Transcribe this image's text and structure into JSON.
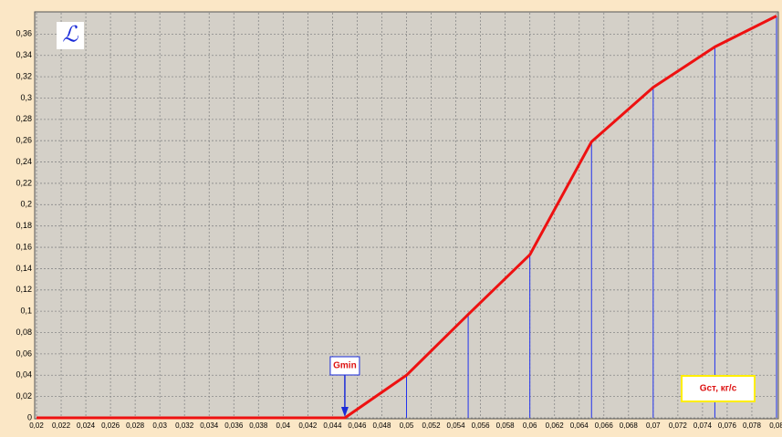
{
  "chart_data": {
    "type": "line",
    "y_label": "ℒ",
    "x_label": "Gст, кг/с",
    "x": [
      0.02,
      0.045,
      0.05,
      0.055,
      0.06,
      0.065,
      0.07,
      0.075,
      0.08
    ],
    "series": [
      {
        "color": "#ee1111",
        "values": [
          0,
          0,
          0.04,
          0.097,
          0.153,
          0.259,
          0.31,
          0.348,
          0.377
        ]
      }
    ],
    "drop_lines": true,
    "drop_line_color": "#2233ee",
    "annotations": [
      {
        "text": "Gmin",
        "x": 0.045
      }
    ],
    "xlim": [
      0.02,
      0.08
    ],
    "ylim": [
      0,
      0.38
    ],
    "grid": true,
    "xticks": [
      {
        "value": 0.02,
        "label": "0,02"
      },
      {
        "value": 0.022,
        "label": "0,022"
      },
      {
        "value": 0.024,
        "label": "0,024"
      },
      {
        "value": 0.026,
        "label": "0,026"
      },
      {
        "value": 0.028,
        "label": "0,028"
      },
      {
        "value": 0.03,
        "label": "0,03"
      },
      {
        "value": 0.032,
        "label": "0,032"
      },
      {
        "value": 0.034,
        "label": "0,034"
      },
      {
        "value": 0.036,
        "label": "0,036"
      },
      {
        "value": 0.038,
        "label": "0,038"
      },
      {
        "value": 0.04,
        "label": "0,04"
      },
      {
        "value": 0.042,
        "label": "0,042"
      },
      {
        "value": 0.044,
        "label": "0,044"
      },
      {
        "value": 0.046,
        "label": "0,046"
      },
      {
        "value": 0.048,
        "label": "0,048"
      },
      {
        "value": 0.05,
        "label": "0,05"
      },
      {
        "value": 0.052,
        "label": "0,052"
      },
      {
        "value": 0.054,
        "label": "0,054"
      },
      {
        "value": 0.056,
        "label": "0,056"
      },
      {
        "value": 0.058,
        "label": "0,058"
      },
      {
        "value": 0.06,
        "label": "0,06"
      },
      {
        "value": 0.062,
        "label": "0,062"
      },
      {
        "value": 0.064,
        "label": "0,064"
      },
      {
        "value": 0.066,
        "label": "0,066"
      },
      {
        "value": 0.068,
        "label": "0,068"
      },
      {
        "value": 0.07,
        "label": "0,07"
      },
      {
        "value": 0.072,
        "label": "0,072"
      },
      {
        "value": 0.074,
        "label": "0,074"
      },
      {
        "value": 0.076,
        "label": "0,076"
      },
      {
        "value": 0.078,
        "label": "0,078"
      },
      {
        "value": 0.08,
        "label": "0,08"
      }
    ],
    "yticks": [
      0,
      {
        "value": 0.02,
        "label": "0,02"
      },
      {
        "value": 0.04,
        "label": "0,04"
      },
      {
        "value": 0.06,
        "label": "0,06"
      },
      {
        "value": 0.08,
        "label": "0,08"
      },
      {
        "value": 0.1,
        "label": "0,1"
      },
      {
        "value": 0.12,
        "label": "0,12"
      },
      {
        "value": 0.14,
        "label": "0,14"
      },
      {
        "value": 0.16,
        "label": "0,16"
      },
      {
        "value": 0.18,
        "label": "0,18"
      },
      {
        "value": 0.2,
        "label": "0,2"
      },
      {
        "value": 0.22,
        "label": "0,22"
      },
      {
        "value": 0.24,
        "label": "0,24"
      },
      {
        "value": 0.26,
        "label": "0,26"
      },
      {
        "value": 0.28,
        "label": "0,28"
      },
      {
        "value": 0.3,
        "label": "0,3"
      },
      {
        "value": 0.32,
        "label": "0,32"
      },
      {
        "value": 0.34,
        "label": "0,34"
      },
      {
        "value": 0.36,
        "label": "0,36"
      }
    ]
  }
}
